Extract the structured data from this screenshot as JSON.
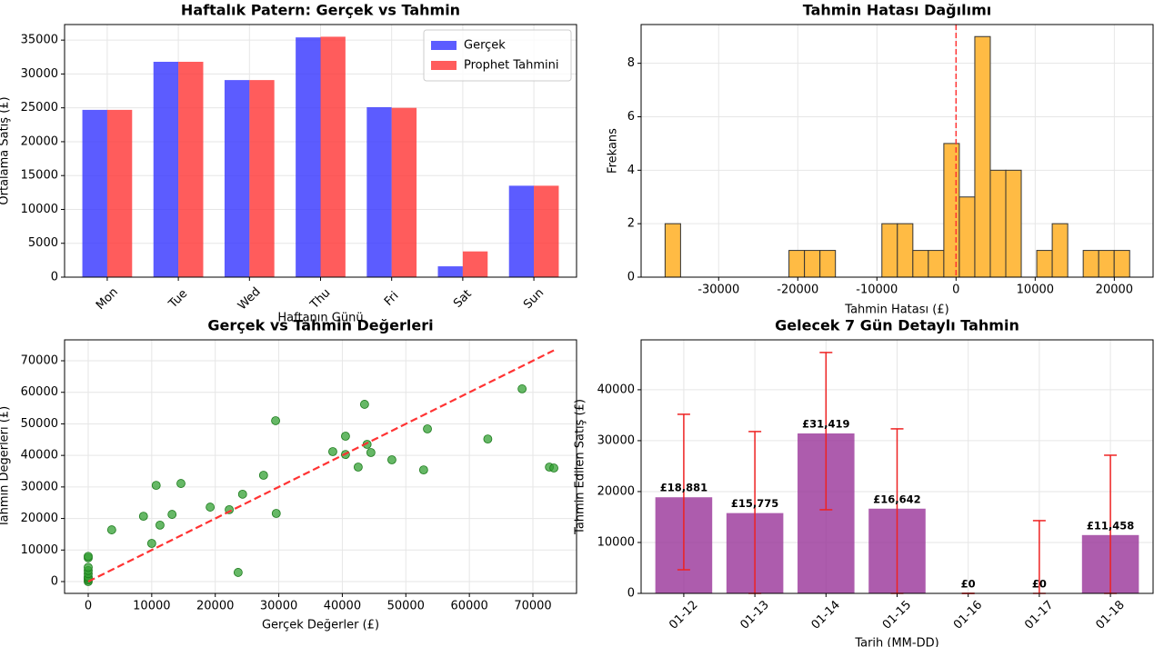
{
  "chart_data": [
    {
      "type": "bar",
      "title": "Haftalık Patern: Gerçek vs Tahmin",
      "xlabel": "Haftanın Günü",
      "ylabel": "Ortalama Satış (£)",
      "categories": [
        "Mon",
        "Tue",
        "Wed",
        "Thu",
        "Fri",
        "Sat",
        "Sun"
      ],
      "series": [
        {
          "name": "Gerçek",
          "color": "#3333ff",
          "values": [
            24700,
            31800,
            29100,
            35400,
            25100,
            1600,
            13500
          ]
        },
        {
          "name": "Prophet Tahmini",
          "color": "#ff3333",
          "values": [
            24700,
            31800,
            29100,
            35500,
            25000,
            3800,
            13500
          ]
        }
      ],
      "ylim": [
        0,
        37300
      ],
      "yticks": [
        0,
        5000,
        10000,
        15000,
        20000,
        25000,
        30000,
        35000
      ],
      "grid": true,
      "legend": "upper right"
    },
    {
      "type": "histogram",
      "title": "Tahmin Hatası Dağılımı",
      "xlabel": "Tahmin Hatası (£)",
      "ylabel": "Frekans",
      "bins": [
        -36770,
        -34813,
        -32856,
        -30899,
        -28942,
        -26985,
        -25028,
        -23071,
        -21114,
        -19157,
        -17200,
        -15243,
        -13286,
        -11329,
        -9372,
        -7415,
        -5458,
        -3501,
        -1544,
        413,
        2370,
        4327,
        6284,
        8241,
        10198,
        12155,
        14112,
        16069,
        18026,
        19983,
        21940
      ],
      "values": [
        2,
        0,
        0,
        0,
        0,
        0,
        0,
        0,
        1,
        1,
        1,
        0,
        0,
        0,
        2,
        2,
        1,
        1,
        5,
        3,
        9,
        4,
        4,
        0,
        1,
        2,
        0,
        1,
        1,
        1
      ],
      "color": "#ffbb44",
      "vline": 0,
      "vline_color": "#ff3333",
      "xlim": [
        -39800,
        24900
      ],
      "xticks": [
        -30000,
        -20000,
        -10000,
        0,
        10000,
        20000
      ],
      "ylim": [
        0,
        9.45
      ],
      "yticks": [
        0,
        2,
        4,
        6,
        8
      ],
      "grid": true
    },
    {
      "type": "scatter",
      "title": "Gerçek vs Tahmin Değerleri",
      "xlabel": "Gerçek Değerler (£)",
      "ylabel": "Tahmin Değerleri (£)",
      "x": [
        0,
        0,
        0,
        0,
        0,
        0,
        0,
        0,
        0,
        3700,
        8700,
        10000,
        10700,
        11300,
        13200,
        14600,
        19200,
        22200,
        23600,
        24300,
        27600,
        29500,
        29600,
        38500,
        40500,
        40500,
        42500,
        43500,
        43900,
        44500,
        47800,
        52800,
        53400,
        62900,
        68300,
        72600,
        73300
      ],
      "values": [
        0,
        500,
        1000,
        1500,
        2500,
        3500,
        4500,
        7500,
        8000,
        16400,
        20700,
        12100,
        30500,
        17900,
        21300,
        31100,
        23600,
        22800,
        2900,
        27700,
        33700,
        51000,
        21600,
        41200,
        46100,
        40300,
        36300,
        56200,
        43500,
        40900,
        38600,
        35400,
        48400,
        45200,
        61100,
        36300,
        36000
      ],
      "color": "#33a033",
      "diagonal": [
        0,
        73300
      ],
      "diagonal_color": "#ff3333",
      "xlim": [
        -3720,
        76870
      ],
      "xticks": [
        0,
        10000,
        20000,
        30000,
        40000,
        50000,
        60000,
        70000
      ],
      "ylim": [
        -3745,
        76630
      ],
      "yticks": [
        0,
        10000,
        20000,
        30000,
        40000,
        50000,
        60000,
        70000
      ],
      "grid": true
    },
    {
      "type": "bar",
      "title": "Gelecek 7 Gün Detaylı Tahmin",
      "xlabel": "Tarih (MM-DD)",
      "ylabel": "Tahmin Edilen Satış (£)",
      "categories": [
        "01-12",
        "01-13",
        "01-14",
        "01-15",
        "01-16",
        "01-17",
        "01-18"
      ],
      "values": [
        18881,
        15775,
        31419,
        16642,
        0,
        0,
        11458
      ],
      "value_labels": [
        "£18,881",
        "£15,775",
        "£31,419",
        "£16,642",
        "£0",
        "£0",
        "£11,458"
      ],
      "error_minus": [
        14240,
        15775,
        14990,
        16642,
        0,
        0,
        11458
      ],
      "error_plus": [
        16300,
        16015,
        15900,
        15680,
        0,
        14290,
        15680
      ],
      "color": "#993399",
      "error_color": "#ee2222",
      "ylim": [
        0,
        49800
      ],
      "yticks": [
        0,
        10000,
        20000,
        30000,
        40000
      ],
      "grid": true
    }
  ]
}
